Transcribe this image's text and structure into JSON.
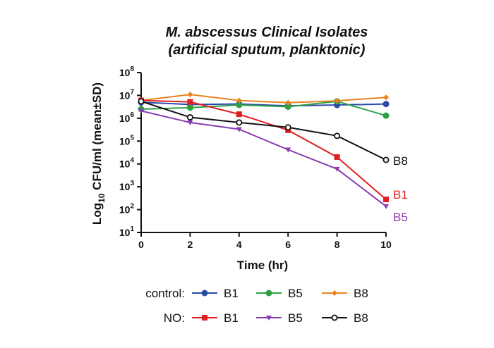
{
  "chart_data": {
    "type": "line",
    "title": "M. abscessus Clinical Isolates",
    "subtitle": "(artificial sputum, planktonic)",
    "xlabel": "Time (hr)",
    "ylabel": {
      "prefix": "Log",
      "subscript": "10",
      "suffix": " CFU/ml (mean±SD)"
    },
    "x": [
      0,
      2,
      4,
      6,
      8,
      10
    ],
    "xlim": [
      0,
      10
    ],
    "xticks": [
      "0",
      "2",
      "4",
      "6",
      "8",
      "10"
    ],
    "ylim": [
      1,
      8
    ],
    "yscale": "log10",
    "yticks": [
      {
        "base": "10",
        "exp": "1"
      },
      {
        "base": "10",
        "exp": "2"
      },
      {
        "base": "10",
        "exp": "3"
      },
      {
        "base": "10",
        "exp": "4"
      },
      {
        "base": "10",
        "exp": "5"
      },
      {
        "base": "10",
        "exp": "6"
      },
      {
        "base": "10",
        "exp": "7"
      },
      {
        "base": "10",
        "exp": "8"
      }
    ],
    "grid": false,
    "legend_placement": "bottom",
    "legend_groups": [
      "control:",
      "NO:"
    ],
    "series": [
      {
        "group": "control",
        "name": "B1",
        "color": "#2b4aa8",
        "marker": "circle-filled",
        "values": [
          5000000,
          4000000,
          4200000,
          3500000,
          3800000,
          4200000
        ]
      },
      {
        "group": "control",
        "name": "B5",
        "color": "#2ea043",
        "marker": "circle-filled",
        "values": [
          2500000,
          2900000,
          3800000,
          3200000,
          5500000,
          1300000
        ]
      },
      {
        "group": "control",
        "name": "B8",
        "color": "#e8831f",
        "marker": "diamond",
        "values": [
          6000000,
          11000000,
          6000000,
          4800000,
          5800000,
          8200000
        ]
      },
      {
        "group": "NO",
        "name": "B1",
        "color": "#e02020",
        "marker": "square",
        "values": [
          6000000,
          5200000,
          1500000,
          300000,
          20000,
          280
        ]
      },
      {
        "group": "NO",
        "name": "B5",
        "color": "#8a3cb0",
        "marker": "triangle-down",
        "values": [
          2100000,
          650000,
          330000,
          42000,
          6000,
          140
        ]
      },
      {
        "group": "NO",
        "name": "B8",
        "color": "#111111",
        "marker": "circle-open",
        "values": [
          5500000,
          1100000,
          650000,
          400000,
          170000,
          15000
        ]
      }
    ],
    "end_labels": [
      {
        "text": "B8",
        "color": "#111111"
      },
      {
        "text": "B1",
        "color": "#e02020"
      },
      {
        "text": "B5",
        "color": "#8a3cb0"
      }
    ]
  }
}
